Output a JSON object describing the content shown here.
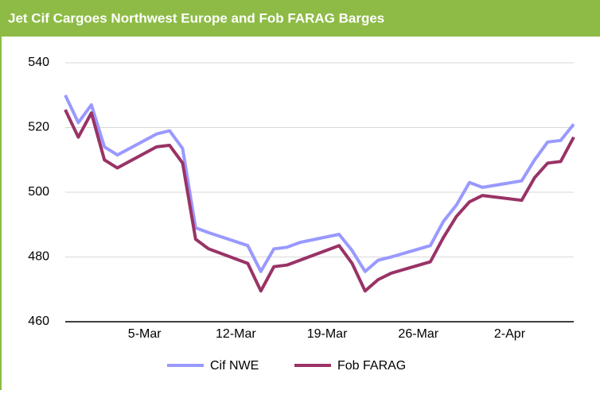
{
  "chart_data": {
    "type": "line",
    "title": "Jet Cif Cargoes Northwest Europe and Fob FARAG Barges",
    "x": [
      "26-Feb",
      "27-Feb",
      "28-Feb",
      "1-Mar",
      "2-Mar",
      "5-Mar",
      "6-Mar",
      "7-Mar",
      "8-Mar",
      "9-Mar",
      "12-Mar",
      "13-Mar",
      "14-Mar",
      "15-Mar",
      "16-Mar",
      "19-Mar",
      "20-Mar",
      "21-Mar",
      "22-Mar",
      "23-Mar",
      "26-Mar",
      "27-Mar",
      "28-Mar",
      "29-Mar",
      "30-Mar",
      "2-Apr",
      "3-Apr",
      "4-Apr",
      "5-Apr",
      "6-Apr"
    ],
    "series": [
      {
        "name": "Cif NWE",
        "color": "#9999ff",
        "values": [
          530,
          521.5,
          527,
          514,
          511.5,
          518,
          519,
          513.5,
          489,
          487.5,
          483.5,
          475.5,
          482.5,
          483,
          484.5,
          487,
          482,
          475.5,
          479,
          480,
          483.5,
          491,
          496,
          503,
          501.5,
          503.5,
          510,
          515.5,
          516,
          521
        ]
      },
      {
        "name": "Fob FARAG",
        "color": "#993366",
        "values": [
          525.5,
          517,
          524.5,
          510,
          507.5,
          514,
          514.5,
          509,
          485.5,
          482.5,
          478,
          469.5,
          477,
          477.5,
          479,
          483.5,
          478,
          469.5,
          473,
          475,
          478.5,
          486,
          492.5,
          497,
          499,
          497.5,
          504.5,
          509,
          509.5,
          517
        ]
      }
    ],
    "xlim": [
      "26-Feb",
      "6-Apr"
    ],
    "xticks": [
      "5-Mar",
      "12-Mar",
      "19-Mar",
      "26-Mar",
      "2-Apr"
    ],
    "ylim": [
      460,
      540
    ],
    "yticks": [
      460,
      480,
      500,
      520,
      540
    ],
    "grid": true,
    "legend": "bottom"
  }
}
